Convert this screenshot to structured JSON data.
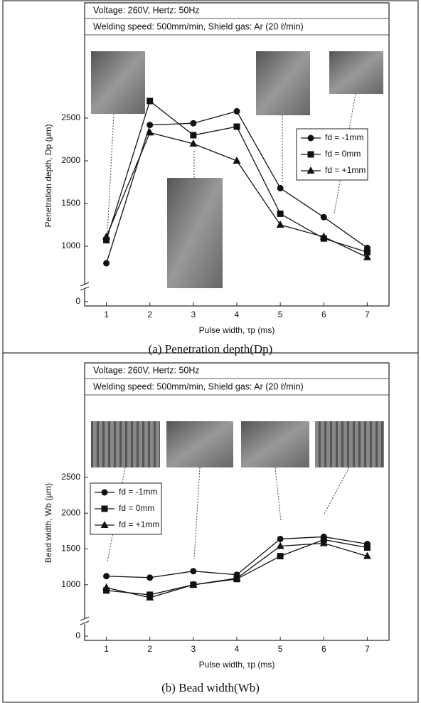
{
  "chart_data": [
    {
      "type": "line",
      "header": [
        "Voltage: 260V, Hertz: 50Hz",
        "Welding speed: 500mm/min, Shield gas: Ar (20 ℓ/min)"
      ],
      "caption": "(a) Penetration depth(Dp)",
      "xlabel": "Pulse width, τp (ms)",
      "ylabel": "Penetration depth, Dp (μm)",
      "x": [
        1,
        2,
        3,
        4,
        5,
        6,
        7
      ],
      "series": [
        {
          "name": "fd = -1mm",
          "color": "#111111",
          "marker": "circle",
          "values": [
            800,
            2420,
            2440,
            2580,
            1680,
            1340,
            980
          ]
        },
        {
          "name": "fd = 0mm",
          "color": "#111111",
          "marker": "square",
          "values": [
            1070,
            2700,
            2300,
            2400,
            1380,
            1090,
            930
          ]
        },
        {
          "name": "fd = +1mm",
          "color": "#111111",
          "marker": "triangle",
          "values": [
            1110,
            2330,
            2200,
            2000,
            1250,
            1110,
            870
          ]
        }
      ],
      "xlim": [
        0.5,
        7.5
      ],
      "xticks": [
        1,
        2,
        3,
        4,
        5,
        6,
        7
      ],
      "ylim": [
        0,
        3850
      ],
      "ybreak": [
        0,
        700
      ],
      "yticks": [
        0,
        1000,
        1500,
        2000,
        2500
      ],
      "legend": "right"
    },
    {
      "type": "line",
      "header": [
        "Voltage: 260V, Hertz: 50Hz",
        "Welding speed: 500mm/min, Shield gas: Ar (20 ℓ/min)"
      ],
      "caption": "(b) Bead width(Wb)",
      "xlabel": "Pulse width, τp (ms)",
      "ylabel": "Bead width, Wb (μm)",
      "x": [
        1,
        2,
        3,
        4,
        5,
        6,
        7
      ],
      "series": [
        {
          "name": "fd = -1mm",
          "color": "#111111",
          "marker": "circle",
          "values": [
            1120,
            1100,
            1190,
            1140,
            1640,
            1670,
            1570
          ]
        },
        {
          "name": "fd = 0mm",
          "color": "#111111",
          "marker": "square",
          "values": [
            920,
            860,
            1000,
            1080,
            1400,
            1630,
            1520
          ]
        },
        {
          "name": "fd = +1mm",
          "color": "#111111",
          "marker": "triangle",
          "values": [
            960,
            820,
            1000,
            1090,
            1540,
            1580,
            1400
          ]
        }
      ],
      "xlim": [
        0.5,
        7.5
      ],
      "xticks": [
        1,
        2,
        3,
        4,
        5,
        6,
        7
      ],
      "ylim": [
        0,
        4100
      ],
      "ybreak": [
        0,
        700
      ],
      "yticks": [
        0,
        1000,
        1500,
        2000,
        2500
      ],
      "legend": "left"
    }
  ]
}
